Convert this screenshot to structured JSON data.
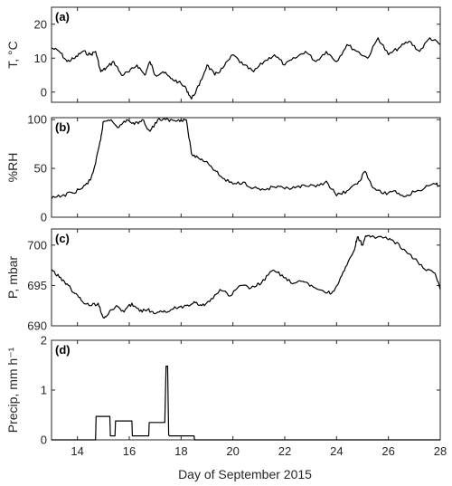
{
  "chart_data": [
    {
      "type": "line",
      "panel_label": "(a)",
      "ylabel": "T, °C",
      "ylim": [
        -3,
        25
      ],
      "yticks": [
        0,
        10,
        20
      ],
      "x": [
        13,
        13.3,
        13.6,
        13.9,
        14.2,
        14.5,
        14.7,
        14.9,
        15.1,
        15.4,
        15.7,
        16.0,
        16.3,
        16.6,
        16.8,
        17.0,
        17.3,
        17.6,
        17.9,
        18.2,
        18.4,
        18.7,
        19.0,
        19.3,
        19.6,
        20.0,
        20.4,
        20.8,
        21.2,
        21.6,
        22.0,
        22.4,
        22.8,
        23.2,
        23.6,
        24.0,
        24.4,
        24.8,
        25.2,
        25.6,
        26.0,
        26.4,
        26.8,
        27.2,
        27.6,
        28.0
      ],
      "y": [
        13,
        12,
        9,
        10,
        12,
        11,
        12,
        6,
        7,
        9,
        5,
        6,
        8,
        5,
        9,
        5,
        6,
        4,
        3,
        1,
        -2,
        2,
        8,
        5,
        7,
        11,
        8,
        6,
        9,
        11,
        8,
        10,
        12,
        9,
        12,
        9,
        14,
        12,
        10,
        16,
        11,
        13,
        15,
        12,
        16,
        14
      ],
      "xlim": [
        13,
        28
      ]
    },
    {
      "type": "line",
      "panel_label": "(b)",
      "ylabel": "%RH",
      "ylim": [
        0,
        102
      ],
      "yticks": [
        0,
        50,
        100
      ],
      "x": [
        13,
        13.4,
        13.8,
        14.2,
        14.5,
        14.7,
        14.9,
        15.0,
        15.3,
        15.6,
        15.9,
        16.2,
        16.5,
        16.8,
        17.1,
        17.4,
        17.7,
        18.0,
        18.2,
        18.4,
        18.7,
        19.0,
        19.3,
        19.6,
        20.0,
        20.4,
        20.8,
        21.2,
        21.6,
        22.0,
        22.4,
        22.8,
        23.2,
        23.6,
        24.0,
        24.4,
        24.8,
        25.1,
        25.4,
        25.8,
        26.2,
        26.6,
        27.0,
        27.4,
        27.8,
        28.0
      ],
      "y": [
        19,
        22,
        25,
        30,
        38,
        55,
        80,
        98,
        100,
        92,
        100,
        95,
        100,
        88,
        100,
        100,
        99,
        100,
        100,
        65,
        60,
        57,
        48,
        40,
        34,
        36,
        30,
        28,
        31,
        29,
        30,
        32,
        31,
        37,
        22,
        27,
        34,
        47,
        30,
        24,
        27,
        21,
        26,
        30,
        34,
        32
      ],
      "xlim": [
        13,
        28
      ]
    },
    {
      "type": "line",
      "panel_label": "(c)",
      "ylabel": "P, mbar",
      "ylim": [
        690,
        702
      ],
      "yticks": [
        690,
        695,
        700
      ],
      "x": [
        13,
        13.3,
        13.6,
        13.9,
        14.2,
        14.5,
        14.8,
        15.0,
        15.2,
        15.5,
        15.8,
        16.1,
        16.4,
        16.7,
        17.0,
        17.3,
        17.6,
        17.9,
        18.2,
        18.5,
        18.8,
        19.1,
        19.5,
        19.9,
        20.3,
        20.7,
        21.1,
        21.5,
        21.9,
        22.3,
        22.7,
        23.1,
        23.5,
        23.8,
        24.1,
        24.4,
        24.7,
        24.8,
        25.0,
        25.1,
        25.3,
        25.9,
        26.2,
        26.6,
        27.0,
        27.4,
        27.8,
        28.0
      ],
      "y": [
        697,
        696,
        695.2,
        694,
        693,
        692.5,
        692.8,
        691,
        691.5,
        692.5,
        691.7,
        692.8,
        691.8,
        692,
        691.5,
        691.7,
        692,
        692.3,
        692.5,
        693,
        692.5,
        693,
        694.5,
        693.7,
        695,
        694.7,
        695.3,
        696.8,
        696.3,
        695.2,
        695.5,
        694.8,
        694.3,
        694,
        695.5,
        697.5,
        699.5,
        701,
        700,
        701,
        701,
        701,
        700.5,
        699.5,
        698.3,
        697,
        696.5,
        694.5
      ],
      "xlim": [
        13,
        28
      ]
    },
    {
      "type": "line",
      "panel_label": "(d)",
      "ylabel": "Precip, mm h⁻¹",
      "ylim": [
        0,
        2
      ],
      "yticks": [
        0,
        1,
        2
      ],
      "x": [
        13,
        14.7,
        14.72,
        15.25,
        15.27,
        15.45,
        15.47,
        16.1,
        16.12,
        16.55,
        16.57,
        16.75,
        16.77,
        17.35,
        17.37,
        17.42,
        17.48,
        17.52,
        17.55,
        18.1,
        18.12,
        18.5,
        18.52,
        28.0
      ],
      "y": [
        0,
        0,
        0.47,
        0.47,
        0.08,
        0.08,
        0.38,
        0.38,
        0.08,
        0.08,
        0.08,
        0.08,
        0.35,
        0.35,
        0.35,
        1.48,
        1.48,
        0.1,
        0.08,
        0.08,
        0.08,
        0.08,
        0,
        0
      ],
      "xlim": [
        13,
        28
      ]
    }
  ],
  "x_axis": {
    "label": "Day of September 2015",
    "ticks": [
      14,
      16,
      18,
      20,
      22,
      24,
      26,
      28
    ]
  }
}
